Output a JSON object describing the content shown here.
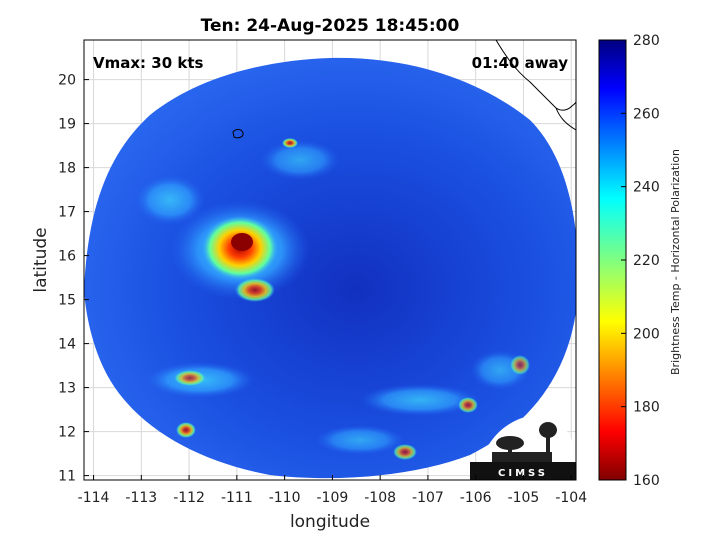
{
  "figure": {
    "title": "Ten: 24-Aug-2025 18:45:00",
    "vmax_text": "Vmax: 30 kts",
    "away_text": "01:40 away",
    "xlabel": "longitude",
    "ylabel": "latitude",
    "logo_text": "CIMSS"
  },
  "axes": {
    "x_ticks": [
      "-114",
      "-113",
      "-112",
      "-111",
      "-110",
      "-109",
      "-108",
      "-107",
      "-106",
      "-105",
      "-104"
    ],
    "y_ticks": [
      "11",
      "12",
      "13",
      "14",
      "15",
      "16",
      "17",
      "18",
      "19",
      "20"
    ],
    "xlim": [
      -114.2,
      -103.9
    ],
    "ylim": [
      10.9,
      20.9
    ]
  },
  "colorbar": {
    "label": "Brightness Temp - Horizontal Polarization",
    "ticks": [
      "160",
      "180",
      "200",
      "220",
      "240",
      "260",
      "280"
    ],
    "range": [
      160,
      280
    ],
    "colormap": "jet"
  },
  "colors": {
    "background_scan": "#1a4fe0",
    "cold_core": "#8b0000",
    "coastline": "#000000"
  }
}
